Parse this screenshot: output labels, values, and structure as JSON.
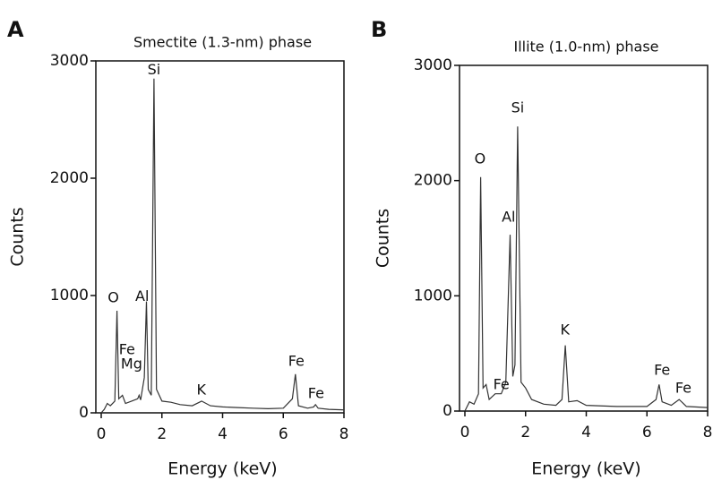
{
  "chart_data": [
    {
      "type": "line",
      "panel": "A",
      "title": "Smectite (1.3-nm) phase",
      "xlabel": "Energy (keV)",
      "ylabel": "Counts",
      "xlim": [
        0,
        8
      ],
      "ylim": [
        0,
        3000
      ],
      "xticks": [
        0,
        2,
        4,
        6,
        8
      ],
      "yticks": [
        0,
        1000,
        2000,
        3000
      ],
      "color": "#333333",
      "x": [
        0,
        0.1,
        0.2,
        0.3,
        0.45,
        0.52,
        0.58,
        0.7,
        0.8,
        1.0,
        1.2,
        1.25,
        1.3,
        1.42,
        1.49,
        1.55,
        1.65,
        1.74,
        1.82,
        2.0,
        2.3,
        2.6,
        3.0,
        3.31,
        3.6,
        4.0,
        4.5,
        5.0,
        5.5,
        6.0,
        6.3,
        6.4,
        6.5,
        6.8,
        7.0,
        7.06,
        7.15,
        7.5,
        8.0
      ],
      "values": [
        0,
        30,
        80,
        60,
        100,
        870,
        120,
        150,
        80,
        100,
        120,
        150,
        110,
        300,
        950,
        200,
        150,
        2850,
        200,
        100,
        90,
        70,
        60,
        100,
        60,
        50,
        45,
        40,
        35,
        40,
        120,
        330,
        60,
        40,
        50,
        70,
        40,
        30,
        25
      ],
      "annotations": [
        {
          "text": "Si",
          "x": 1.74,
          "y": 2920
        },
        {
          "text": "O",
          "x": 0.4,
          "y": 977
        },
        {
          "text": "Al",
          "x": 1.35,
          "y": 990
        },
        {
          "text": "Fe",
          "x": 0.85,
          "y": 534
        },
        {
          "text": "Mg",
          "x": 1.0,
          "y": 412
        },
        {
          "text": "K",
          "x": 3.3,
          "y": 191
        },
        {
          "text": "Fe",
          "x": 6.43,
          "y": 435
        },
        {
          "text": "Fe",
          "x": 7.08,
          "y": 160
        }
      ]
    },
    {
      "type": "line",
      "panel": "B",
      "title": "Illite (1.0-nm) phase",
      "xlabel": "Energy (keV)",
      "ylabel": "Counts",
      "xlim": [
        0,
        8
      ],
      "ylim": [
        0,
        3000
      ],
      "xticks": [
        0,
        2,
        4,
        6,
        8
      ],
      "yticks": [
        0,
        1000,
        2000,
        3000
      ],
      "color": "#333333",
      "x": [
        0,
        0.15,
        0.3,
        0.45,
        0.52,
        0.6,
        0.7,
        0.8,
        1.0,
        1.2,
        1.35,
        1.49,
        1.58,
        1.65,
        1.74,
        1.85,
        2.0,
        2.2,
        2.6,
        3.0,
        3.2,
        3.31,
        3.42,
        3.7,
        4.0,
        5.0,
        6.0,
        6.3,
        6.4,
        6.5,
        6.8,
        7.06,
        7.3,
        8.0
      ],
      "values": [
        0,
        80,
        60,
        150,
        2030,
        200,
        230,
        100,
        150,
        150,
        250,
        1530,
        300,
        400,
        2470,
        250,
        200,
        100,
        60,
        50,
        100,
        570,
        80,
        90,
        50,
        40,
        40,
        100,
        230,
        80,
        50,
        100,
        40,
        30
      ],
      "annotations": [
        {
          "text": "O",
          "x": 0.5,
          "y": 2183
        },
        {
          "text": "Si",
          "x": 1.74,
          "y": 2626
        },
        {
          "text": "Al",
          "x": 1.44,
          "y": 1678
        },
        {
          "text": "Fe",
          "x": 1.2,
          "y": 225
        },
        {
          "text": "K",
          "x": 3.3,
          "y": 700
        },
        {
          "text": "Fe",
          "x": 6.5,
          "y": 350
        },
        {
          "text": "Fe",
          "x": 7.2,
          "y": 194
        }
      ]
    }
  ]
}
